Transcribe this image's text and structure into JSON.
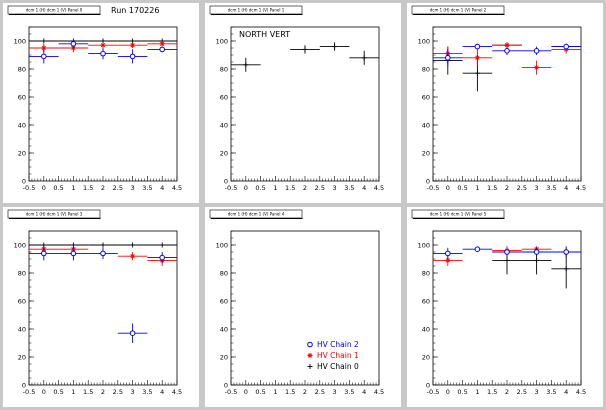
{
  "colors": {
    "chain2": "#0000ff",
    "chain1": "#ff0000",
    "chain0": "#000000"
  },
  "chart_data": [
    {
      "type": "scatter",
      "pad_title": "dcm 1 (H) dcm 1 (V) Panel 0",
      "run_label": "Run 170226",
      "annotation": "",
      "xlim": [
        -0.5,
        4.5
      ],
      "ylim": [
        0,
        110
      ],
      "xticks": [
        "-0.5",
        "0",
        "0.5",
        "1",
        "1.5",
        "2",
        "2.5",
        "3",
        "3.5",
        "4",
        "4.5"
      ],
      "yticks": [
        "0",
        "20",
        "40",
        "60",
        "80",
        "100"
      ],
      "series": [
        {
          "name": "HV Chain 2",
          "color": "chain2",
          "marker": "circle",
          "points": [
            {
              "x": 0,
              "y": 89,
              "xerr": 0.5,
              "yerr": 5
            },
            {
              "x": 1,
              "y": 98,
              "xerr": 0.5,
              "yerr": 3
            },
            {
              "x": 2,
              "y": 91,
              "xerr": 0.5,
              "yerr": 4
            },
            {
              "x": 3,
              "y": 89,
              "xerr": 0.5,
              "yerr": 5
            },
            {
              "x": 4,
              "y": 94,
              "xerr": 0.5,
              "yerr": 2
            }
          ]
        },
        {
          "name": "HV Chain 1",
          "color": "chain1",
          "marker": "star",
          "points": [
            {
              "x": 0,
              "y": 95,
              "xerr": 0.5,
              "yerr": 3
            },
            {
              "x": 1,
              "y": 95,
              "xerr": 0.5,
              "yerr": 3
            },
            {
              "x": 2,
              "y": 97,
              "xerr": 0.5,
              "yerr": 2
            },
            {
              "x": 3,
              "y": 97,
              "xerr": 0.5,
              "yerr": 2
            },
            {
              "x": 4,
              "y": 98,
              "xerr": 0.5,
              "yerr": 1
            }
          ]
        },
        {
          "name": "HV Chain 0",
          "color": "chain0",
          "marker": "plus",
          "points": [
            {
              "x": 0,
              "y": 100,
              "xerr": 0.5,
              "yerr": 0
            },
            {
              "x": 1,
              "y": 100,
              "xerr": 0.5,
              "yerr": 0
            },
            {
              "x": 2,
              "y": 100,
              "xerr": 0.5,
              "yerr": 0
            },
            {
              "x": 3,
              "y": 100,
              "xerr": 0.5,
              "yerr": 0
            },
            {
              "x": 4,
              "y": 100,
              "xerr": 0.5,
              "yerr": 0
            }
          ]
        }
      ]
    },
    {
      "type": "scatter",
      "pad_title": "dcm 1 (H) dcm 1 (V) Panel 1",
      "run_label": "",
      "annotation": "NORTH VERT",
      "xlim": [
        -0.5,
        4.5
      ],
      "ylim": [
        0,
        110
      ],
      "xticks": [
        "-0.5",
        "0",
        "0.5",
        "1",
        "1.5",
        "2",
        "2.5",
        "3",
        "3.5",
        "4",
        "4.5"
      ],
      "yticks": [
        "0",
        "20",
        "40",
        "60",
        "80",
        "100"
      ],
      "series": [
        {
          "name": "HV Chain 0",
          "color": "chain0",
          "marker": "plus",
          "points": [
            {
              "x": 0,
              "y": 83,
              "xerr": 0.5,
              "yerr": 5
            },
            {
              "x": 2,
              "y": 94,
              "xerr": 0.5,
              "yerr": 3
            },
            {
              "x": 3,
              "y": 96,
              "xerr": 0.5,
              "yerr": 3
            },
            {
              "x": 4,
              "y": 88,
              "xerr": 0.5,
              "yerr": 5
            }
          ]
        }
      ]
    },
    {
      "type": "scatter",
      "pad_title": "dcm 1 (H) dcm 1 (V) Panel 2",
      "run_label": "",
      "annotation": "",
      "xlim": [
        -0.5,
        4.5
      ],
      "ylim": [
        0,
        110
      ],
      "xticks": [
        "-0.5",
        "0",
        "0.5",
        "1",
        "1.5",
        "2",
        "2.5",
        "3",
        "3.5",
        "4",
        "4.5"
      ],
      "yticks": [
        "0",
        "20",
        "40",
        "60",
        "80",
        "100"
      ],
      "series": [
        {
          "name": "HV Chain 2",
          "color": "chain2",
          "marker": "circle",
          "points": [
            {
              "x": 0,
              "y": 88,
              "xerr": 0.5,
              "yerr": 6
            },
            {
              "x": 1,
              "y": 96,
              "xerr": 0.5,
              "yerr": 2
            },
            {
              "x": 2,
              "y": 93,
              "xerr": 0.5,
              "yerr": 3
            },
            {
              "x": 3,
              "y": 93,
              "xerr": 0.5,
              "yerr": 3
            },
            {
              "x": 4,
              "y": 96,
              "xerr": 0.5,
              "yerr": 2
            }
          ]
        },
        {
          "name": "HV Chain 1",
          "color": "chain1",
          "marker": "star",
          "points": [
            {
              "x": 0,
              "y": 91,
              "xerr": 0.5,
              "yerr": 5
            },
            {
              "x": 1,
              "y": 88,
              "xerr": 0.5,
              "yerr": 6
            },
            {
              "x": 2,
              "y": 97,
              "xerr": 0.5,
              "yerr": 2
            },
            {
              "x": 3,
              "y": 81,
              "xerr": 0.5,
              "yerr": 5
            },
            {
              "x": 4,
              "y": 94,
              "xerr": 0.5,
              "yerr": 3
            }
          ]
        },
        {
          "name": "HV Chain 0",
          "color": "chain0",
          "marker": "plus",
          "points": [
            {
              "x": 0,
              "y": 86,
              "xerr": 0.5,
              "yerr": 10
            },
            {
              "x": 1,
              "y": 77,
              "xerr": 0.5,
              "yerr": 13
            },
            {
              "x": 2,
              "y": 97,
              "xerr": 0.5,
              "yerr": 2
            },
            {
              "x": 4,
              "y": 96,
              "xerr": 0.5,
              "yerr": 2
            }
          ]
        }
      ]
    },
    {
      "type": "scatter",
      "pad_title": "dcm 1 (H) dcm 1 (V) Panel 3",
      "run_label": "",
      "annotation": "",
      "xlim": [
        -0.5,
        4.5
      ],
      "ylim": [
        0,
        110
      ],
      "xticks": [
        "-0.5",
        "0",
        "0.5",
        "1",
        "1.5",
        "2",
        "2.5",
        "3",
        "3.5",
        "4",
        "4.5"
      ],
      "yticks": [
        "0",
        "20",
        "40",
        "60",
        "80",
        "100"
      ],
      "series": [
        {
          "name": "HV Chain 2",
          "color": "chain2",
          "marker": "circle",
          "points": [
            {
              "x": 0,
              "y": 94,
              "xerr": 0.5,
              "yerr": 5
            },
            {
              "x": 1,
              "y": 94,
              "xerr": 0.5,
              "yerr": 5
            },
            {
              "x": 2,
              "y": 94,
              "xerr": 0.5,
              "yerr": 4
            },
            {
              "x": 3,
              "y": 37,
              "xerr": 0.5,
              "yerr": 7
            },
            {
              "x": 4,
              "y": 91,
              "xerr": 0.5,
              "yerr": 4
            }
          ]
        },
        {
          "name": "HV Chain 1",
          "color": "chain1",
          "marker": "star",
          "points": [
            {
              "x": 0,
              "y": 97,
              "xerr": 0.5,
              "yerr": 2
            },
            {
              "x": 1,
              "y": 97,
              "xerr": 0.5,
              "yerr": 2
            },
            {
              "x": 3,
              "y": 92,
              "xerr": 0.5,
              "yerr": 3
            },
            {
              "x": 4,
              "y": 89,
              "xerr": 0.5,
              "yerr": 4
            }
          ]
        },
        {
          "name": "HV Chain 0",
          "color": "chain0",
          "marker": "plus",
          "points": [
            {
              "x": 0,
              "y": 100,
              "xerr": 0.5,
              "yerr": 0
            },
            {
              "x": 1,
              "y": 100,
              "xerr": 0.5,
              "yerr": 0
            },
            {
              "x": 2,
              "y": 100,
              "xerr": 0.5,
              "yerr": 0
            },
            {
              "x": 3,
              "y": 100,
              "xerr": 0.5,
              "yerr": 0
            },
            {
              "x": 4,
              "y": 100,
              "xerr": 0.5,
              "yerr": 0
            }
          ]
        }
      ]
    },
    {
      "type": "scatter",
      "pad_title": "dcm 1 (H) dcm 1 (V) Panel 4",
      "run_label": "",
      "annotation": "",
      "xlim": [
        -0.5,
        4.5
      ],
      "ylim": [
        0,
        110
      ],
      "xticks": [
        "-0.5",
        "0",
        "0.5",
        "1",
        "1.5",
        "2",
        "2.5",
        "3",
        "3.5",
        "4",
        "4.5"
      ],
      "yticks": [
        "0",
        "20",
        "40",
        "60",
        "80",
        "100"
      ],
      "series": [],
      "legend": [
        {
          "label": "HV Chain 2",
          "color": "chain2",
          "marker": "circle"
        },
        {
          "label": "HV Chain 1",
          "color": "chain1",
          "marker": "star"
        },
        {
          "label": "HV Chain 0",
          "color": "chain0",
          "marker": "plus"
        }
      ]
    },
    {
      "type": "scatter",
      "pad_title": "dcm 1 (H) dcm 1 (V) Panel 5",
      "run_label": "",
      "annotation": "",
      "xlim": [
        -0.5,
        4.5
      ],
      "ylim": [
        0,
        110
      ],
      "xticks": [
        "-0.5",
        "0",
        "0.5",
        "1",
        "1.5",
        "2",
        "2.5",
        "3",
        "3.5",
        "4",
        "4.5"
      ],
      "yticks": [
        "0",
        "20",
        "40",
        "60",
        "80",
        "100"
      ],
      "series": [
        {
          "name": "HV Chain 2",
          "color": "chain2",
          "marker": "circle",
          "points": [
            {
              "x": 0,
              "y": 94,
              "xerr": 0.5,
              "yerr": 4
            },
            {
              "x": 1,
              "y": 97,
              "xerr": 0.5,
              "yerr": 2
            },
            {
              "x": 2,
              "y": 95,
              "xerr": 0.5,
              "yerr": 3
            },
            {
              "x": 3,
              "y": 95,
              "xerr": 0.5,
              "yerr": 3
            },
            {
              "x": 4,
              "y": 95,
              "xerr": 0.5,
              "yerr": 4
            }
          ]
        },
        {
          "name": "HV Chain 1",
          "color": "chain1",
          "marker": "star",
          "points": [
            {
              "x": 0,
              "y": 89,
              "xerr": 0.5,
              "yerr": 4
            },
            {
              "x": 2,
              "y": 96,
              "xerr": 0.5,
              "yerr": 3
            },
            {
              "x": 3,
              "y": 97,
              "xerr": 0.5,
              "yerr": 2
            },
            {
              "x": 4,
              "y": 95,
              "xerr": 0.5,
              "yerr": 3
            }
          ]
        },
        {
          "name": "HV Chain 0",
          "color": "chain0",
          "marker": "plus",
          "points": [
            {
              "x": 2,
              "y": 89,
              "xerr": 0.5,
              "yerr": 10
            },
            {
              "x": 3,
              "y": 89,
              "xerr": 0.5,
              "yerr": 10
            },
            {
              "x": 4,
              "y": 83,
              "xerr": 0.5,
              "yerr": 14
            }
          ]
        }
      ]
    }
  ]
}
